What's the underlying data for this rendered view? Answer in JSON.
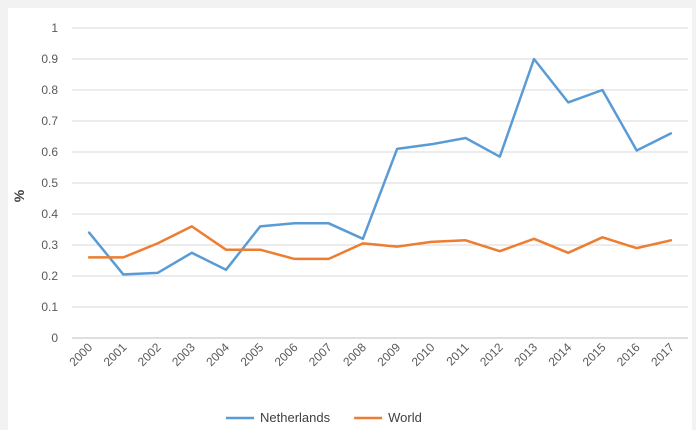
{
  "chart_data": {
    "type": "line",
    "title": "",
    "xlabel": "",
    "ylabel": "%",
    "ylim": [
      0,
      1
    ],
    "yticks": [
      "0",
      "0.1",
      "0.2",
      "0.3",
      "0.4",
      "0.5",
      "0.6",
      "0.7",
      "0.8",
      "0.9",
      "1"
    ],
    "grid": true,
    "legend": "bottom",
    "categories": [
      "2000",
      "2001",
      "2002",
      "2003",
      "2004",
      "2005",
      "2006",
      "2007",
      "2008",
      "2009",
      "2010",
      "2011",
      "2012",
      "2013",
      "2014",
      "2015",
      "2016",
      "2017"
    ],
    "series": [
      {
        "name": "Netherlands",
        "color": "#5b9bd5",
        "values": [
          0.34,
          0.205,
          0.21,
          0.275,
          0.22,
          0.36,
          0.37,
          0.37,
          0.32,
          0.61,
          0.625,
          0.645,
          0.585,
          0.9,
          0.76,
          0.8,
          0.605,
          0.66
        ]
      },
      {
        "name": "World",
        "color": "#ed7d31",
        "values": [
          0.26,
          0.26,
          0.305,
          0.36,
          0.285,
          0.285,
          0.255,
          0.255,
          0.305,
          0.295,
          0.31,
          0.315,
          0.28,
          0.32,
          0.275,
          0.325,
          0.29,
          0.315
        ]
      }
    ]
  }
}
